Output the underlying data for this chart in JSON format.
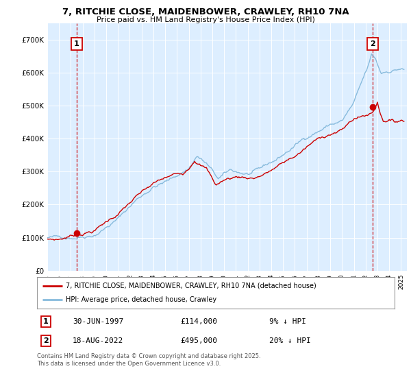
{
  "title": "7, RITCHIE CLOSE, MAIDENBOWER, CRAWLEY, RH10 7NA",
  "subtitle": "Price paid vs. HM Land Registry's House Price Index (HPI)",
  "legend_line1": "7, RITCHIE CLOSE, MAIDENBOWER, CRAWLEY, RH10 7NA (detached house)",
  "legend_line2": "HPI: Average price, detached house, Crawley",
  "annotation1_label": "1",
  "annotation1_date": "30-JUN-1997",
  "annotation1_price": "£114,000",
  "annotation1_hpi": "9% ↓ HPI",
  "annotation2_label": "2",
  "annotation2_date": "18-AUG-2022",
  "annotation2_price": "£495,000",
  "annotation2_hpi": "20% ↓ HPI",
  "footer": "Contains HM Land Registry data © Crown copyright and database right 2025.\nThis data is licensed under the Open Government Licence v3.0.",
  "sale_color": "#cc0000",
  "hpi_color": "#88bbdd",
  "background_color": "#ddeeff",
  "ylim": [
    0,
    750000
  ],
  "yticks": [
    0,
    100000,
    200000,
    300000,
    400000,
    500000,
    600000,
    700000
  ],
  "ytick_labels": [
    "£0",
    "£100K",
    "£200K",
    "£300K",
    "£400K",
    "£500K",
    "£600K",
    "£700K"
  ],
  "sale1_x": 1997.5,
  "sale1_y": 114000,
  "sale2_x": 2022.6,
  "sale2_y": 495000,
  "xmin": 1995.0,
  "xmax": 2025.5
}
